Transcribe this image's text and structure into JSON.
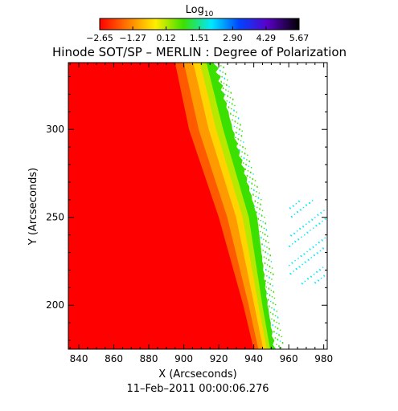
{
  "chart_data": {
    "type": "heatmap",
    "title": "Hinode SOT/SP – MERLIN : Degree of Polarization",
    "xlabel": "X (Arcseconds)",
    "ylabel": "Y (Arcseconds)",
    "date_label": "11–Feb–2011 00:00:06.276",
    "xlim": [
      834,
      982
    ],
    "ylim": [
      175,
      338
    ],
    "x_ticks": [
      840,
      860,
      880,
      900,
      920,
      940,
      960,
      980
    ],
    "x_tick_labels": [
      "840",
      "860",
      "880",
      "900",
      "920",
      "940",
      "960",
      "980"
    ],
    "y_ticks": [
      200,
      250,
      300
    ],
    "y_tick_labels": [
      "200",
      "250",
      "300"
    ],
    "colorbar": {
      "title_base": "Log",
      "title_sub": "10",
      "range": [
        -2.65,
        5.67
      ],
      "tick_values": [
        -2.65,
        -1.27,
        0.12,
        1.51,
        2.9,
        4.29,
        5.67
      ],
      "tick_labels": [
        "−2.65",
        "−1.27",
        "0.12",
        "1.51",
        "2.90",
        "4.29",
        "5.67"
      ],
      "colormap": "rainbow: red → orange → yellow → green → cyan → blue → purple → black"
    },
    "limb_edge": {
      "description": "solar limb: red disk region (low values) on the left, transition through orange/yellow/green near the limb, blank (white) off-limb to the right",
      "red_edge_x_at_y": [
        [
          338,
          895
        ],
        [
          300,
          903
        ],
        [
          250,
          920
        ],
        [
          200,
          934
        ],
        [
          175,
          940
        ]
      ],
      "data_edge_x_at_y": [
        [
          338,
          918
        ],
        [
          300,
          928
        ],
        [
          250,
          942
        ],
        [
          200,
          948
        ],
        [
          175,
          952
        ]
      ]
    },
    "grid": false
  }
}
